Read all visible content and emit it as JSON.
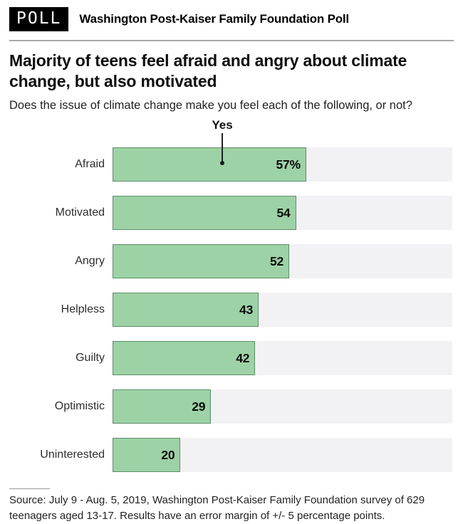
{
  "header": {
    "badge": "POLL",
    "title": "Washington Post-Kaiser Family Foundation Poll"
  },
  "title": "Majority of teens feel afraid and angry about climate change, but also motivated",
  "subtitle": "Does the issue of climate change make you feel each of the following, or not?",
  "chart_data": {
    "type": "bar",
    "orientation": "horizontal",
    "annotation_label": "Yes",
    "categories": [
      "Afraid",
      "Motivated",
      "Angry",
      "Helpless",
      "Guilty",
      "Optimistic",
      "Uninterested"
    ],
    "values": [
      57,
      54,
      52,
      43,
      42,
      29,
      20
    ],
    "value_labels": [
      "57%",
      "54",
      "52",
      "43",
      "42",
      "29",
      "20"
    ],
    "xlim": [
      0,
      100
    ],
    "grid": false,
    "legend": false,
    "colors": {
      "bar_fill": "#9dd2a6",
      "bar_border": "#5c8e68",
      "track": "#f2f2f4"
    }
  },
  "source": {
    "text": "Source: July 9 - Aug. 5, 2019, Washington Post-Kaiser Family Foundation survey of 629 teenagers aged 13-17. Results have an error margin of +/- 5 percentage points."
  }
}
